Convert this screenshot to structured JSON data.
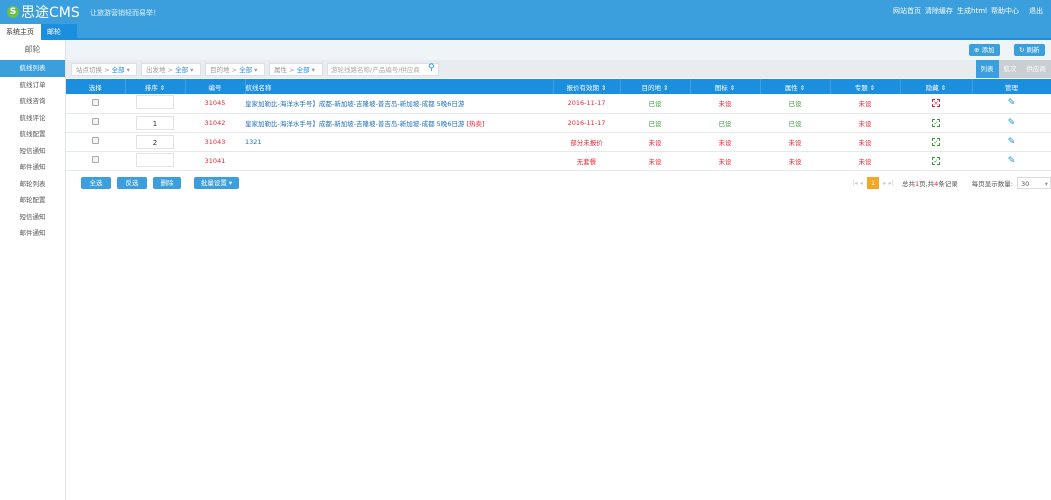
{
  "header": {
    "logo_mark": "S",
    "logo": "思途CMS",
    "slogan": "让旅游营销轻而易举！",
    "links": [
      "网站首页",
      "清除缓存",
      "生成html",
      "帮助中心",
      "退出"
    ]
  },
  "tabs": {
    "home": "系统主页",
    "current": "邮轮",
    "close": "×"
  },
  "sidebar": {
    "title": "邮轮",
    "items": [
      "航线列表",
      "航线订单",
      "航线咨询",
      "航线评论",
      "航线配置",
      "短信通知",
      "邮件通知",
      "邮轮列表",
      "邮轮配置",
      "短信通知",
      "邮件通知"
    ]
  },
  "toolbar": {
    "add": "添加",
    "refresh": "刷新"
  },
  "filters": [
    {
      "label": "站点切换 > ",
      "value": "全部"
    },
    {
      "label": "出发地 > ",
      "value": "全部"
    },
    {
      "label": "目的地 > ",
      "value": "全部"
    },
    {
      "label": "属性 > ",
      "value": "全部"
    }
  ],
  "search": {
    "placeholder": "游轮线路名称/产品编号/供应商"
  },
  "views": [
    "列表",
    "航次",
    "供应商"
  ],
  "table": {
    "headers": [
      "选择",
      "排序 ⇕",
      "编号",
      "航线名称",
      "报价有效期 ⇕",
      "目的地 ⇕",
      "图标 ⇕",
      "属性 ⇕",
      "专题 ⇕",
      "隐藏 ⇕",
      "管理"
    ],
    "rows": [
      {
        "order": "",
        "id": "31045",
        "name": "皇家加勒比-海洋水手号】成都-新加坡-吉隆坡-普吉岛-新加坡-成都 5晚6日游",
        "tag": "",
        "price": "2016-11-17",
        "dest": "已设",
        "icon": "未设",
        "attr": "已设",
        "topic": "未设",
        "hidden": "x"
      },
      {
        "order": "1",
        "id": "31042",
        "name": "皇家加勒比-海洋水手号】成都-新加坡-吉隆坡-普吉岛-新加坡-成都 5晚6日游",
        "tag": "[热卖]",
        "price": "2016-11-17",
        "dest": "已设",
        "icon": "已设",
        "attr": "已设",
        "topic": "未设",
        "hidden": "check"
      },
      {
        "order": "2",
        "id": "31043",
        "name": "1321",
        "tag": "",
        "price": "部分未报价",
        "dest": "未设",
        "icon": "未设",
        "attr": "未设",
        "topic": "未设",
        "hidden": "check"
      },
      {
        "order": "",
        "id": "31041",
        "name": "",
        "tag": "",
        "price": "无套餐",
        "dest": "未设",
        "icon": "未设",
        "attr": "未设",
        "topic": "未设",
        "hidden": "check"
      }
    ]
  },
  "footer": {
    "select_all": "全选",
    "invert": "反选",
    "delete": "删除",
    "batch": "批量设置 ▾",
    "page": "1",
    "total_prefix": "总共",
    "pages": "1",
    "mid": "页,共",
    "records": "4",
    "suffix": "条记录",
    "per_page_label": "每页显示数量:",
    "per_page": "30"
  },
  "colors": {
    "primary": "#3a9fdc",
    "header_row": "#1b8ede",
    "red": "#e22233",
    "green": "#3a9a3a",
    "pager": "#f5a623"
  }
}
